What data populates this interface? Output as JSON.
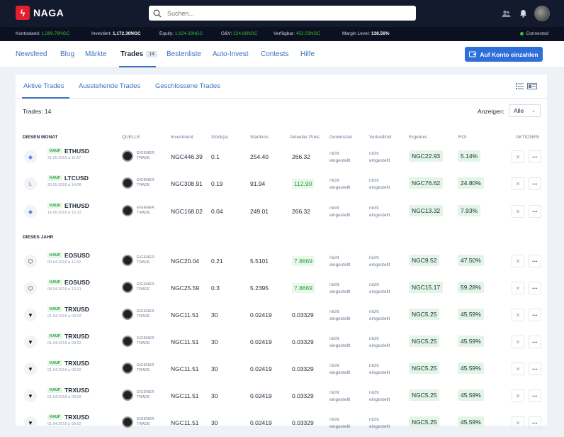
{
  "app": {
    "name": "NAGA"
  },
  "search": {
    "placeholder": "Suchen..."
  },
  "status": [
    {
      "label": "Kontostand:",
      "value": "1,399.76NGC",
      "style": "v"
    },
    {
      "label": "Investiert:",
      "value": "1,172.30NGC",
      "style": "w"
    },
    {
      "label": "Equity:",
      "value": "1,624.33NGC",
      "style": "v"
    },
    {
      "label": "G&V:",
      "value": "224.68NGC",
      "style": "v"
    },
    {
      "label": "Verfügbar:",
      "value": "452.03NGC",
      "style": "v"
    },
    {
      "label": "Margin Level:",
      "value": "138.56%",
      "style": "w"
    }
  ],
  "connection": "Connected",
  "nav": {
    "items": [
      "Newsfeed",
      "Blog",
      "Märkte",
      "Trades",
      "Bestenliste",
      "Auto-Invest",
      "Contests",
      "Hilfe"
    ],
    "active": "Trades",
    "trades_badge": "14",
    "cta": "Auf Konto einzahlen"
  },
  "subtabs": [
    "Aktive Trades",
    "Ausstehende Trades",
    "Geschlossene Trades"
  ],
  "trades_label": "Trades:",
  "trades_count": "14",
  "show_label": "Anzeigen:",
  "show_value": "Alle",
  "columns": [
    "QUELLE",
    "Investment",
    "Stück(e)",
    "Startkurs",
    "Aktueller Preis",
    "Gewinnziel",
    "Verlustlimit",
    "Ergebnis",
    "ROI",
    "AKTIONEN"
  ],
  "sections": [
    "DIESEN MONAT",
    "DIESES JAHR"
  ],
  "not_set": "nicht eingestellt",
  "side_label": "KAUF",
  "source_label": "EIGENER TRADE",
  "rows": [
    {
      "symbol": "ETHUSD",
      "date": "21.05.2019 ⌀ 11:27",
      "investment": "NGC446.39",
      "units": "0.1",
      "start": "254.40",
      "current": "266.32",
      "current_up": false,
      "result": "NGC22.93",
      "roi": "5.14%",
      "coin": "eth"
    },
    {
      "symbol": "LTCUSD",
      "date": "20.05.2019 ⌀ 14:08",
      "investment": "NGC308.91",
      "units": "0.19",
      "start": "91.94",
      "current": "112.90",
      "current_up": true,
      "result": "NGC76.62",
      "roi": "24.80%",
      "coin": "ltc"
    },
    {
      "symbol": "ETHUSD",
      "date": "16.05.2019 ⌀ 15:12",
      "investment": "NGC168.02",
      "units": "0.04",
      "start": "249.01",
      "current": "266.32",
      "current_up": false,
      "result": "NGC13.32",
      "roi": "7.93%",
      "coin": "eth"
    },
    {
      "symbol": "EOSUSD",
      "date": "09.04.2019 ⌀ 11:32",
      "investment": "NGC20.04",
      "units": "0.21",
      "start": "5.5101",
      "current": "7.8669",
      "current_up": true,
      "result": "NGC9.52",
      "roi": "47.50%",
      "coin": "eos"
    },
    {
      "symbol": "EOSUSD",
      "date": "04.04.2019 ⌀ 12:21",
      "investment": "NGC25.59",
      "units": "0.3",
      "start": "5.2395",
      "current": "7.8669",
      "current_up": true,
      "result": "NGC15.17",
      "roi": "59.28%",
      "coin": "eos"
    },
    {
      "symbol": "TRXUSD",
      "date": "01.04.2019 ⌀ 09:02",
      "investment": "NGC11.51",
      "units": "30",
      "start": "0.02419",
      "current": "0.03329",
      "current_up": false,
      "result": "NGC5.25",
      "roi": "45.59%",
      "coin": "trx"
    },
    {
      "symbol": "TRXUSD",
      "date": "01.04.2019 ⌀ 09:02",
      "investment": "NGC11.51",
      "units": "30",
      "start": "0.02419",
      "current": "0.03329",
      "current_up": false,
      "result": "NGC5.25",
      "roi": "45.59%",
      "coin": "trx"
    },
    {
      "symbol": "TRXUSD",
      "date": "01.04.2019 ⌀ 09:02",
      "investment": "NGC11.51",
      "units": "30",
      "start": "0.02419",
      "current": "0.03329",
      "current_up": false,
      "result": "NGC5.25",
      "roi": "45.59%",
      "coin": "trx"
    },
    {
      "symbol": "TRXUSD",
      "date": "01.04.2019 ⌀ 09:02",
      "investment": "NGC11.51",
      "units": "30",
      "start": "0.02419",
      "current": "0.03329",
      "current_up": false,
      "result": "NGC5.25",
      "roi": "45.59%",
      "coin": "trx"
    },
    {
      "symbol": "TRXUSD",
      "date": "01.04.2019 ⌀ 09:02",
      "investment": "NGC11.51",
      "units": "30",
      "start": "0.02419",
      "current": "0.03329",
      "current_up": false,
      "result": "NGC5.25",
      "roi": "45.59%",
      "coin": "trx"
    }
  ],
  "colors": {
    "brand": "#e31e2d",
    "accent": "#3a6fc4",
    "positive": "#27a33a",
    "topbar": "#141a2e"
  }
}
